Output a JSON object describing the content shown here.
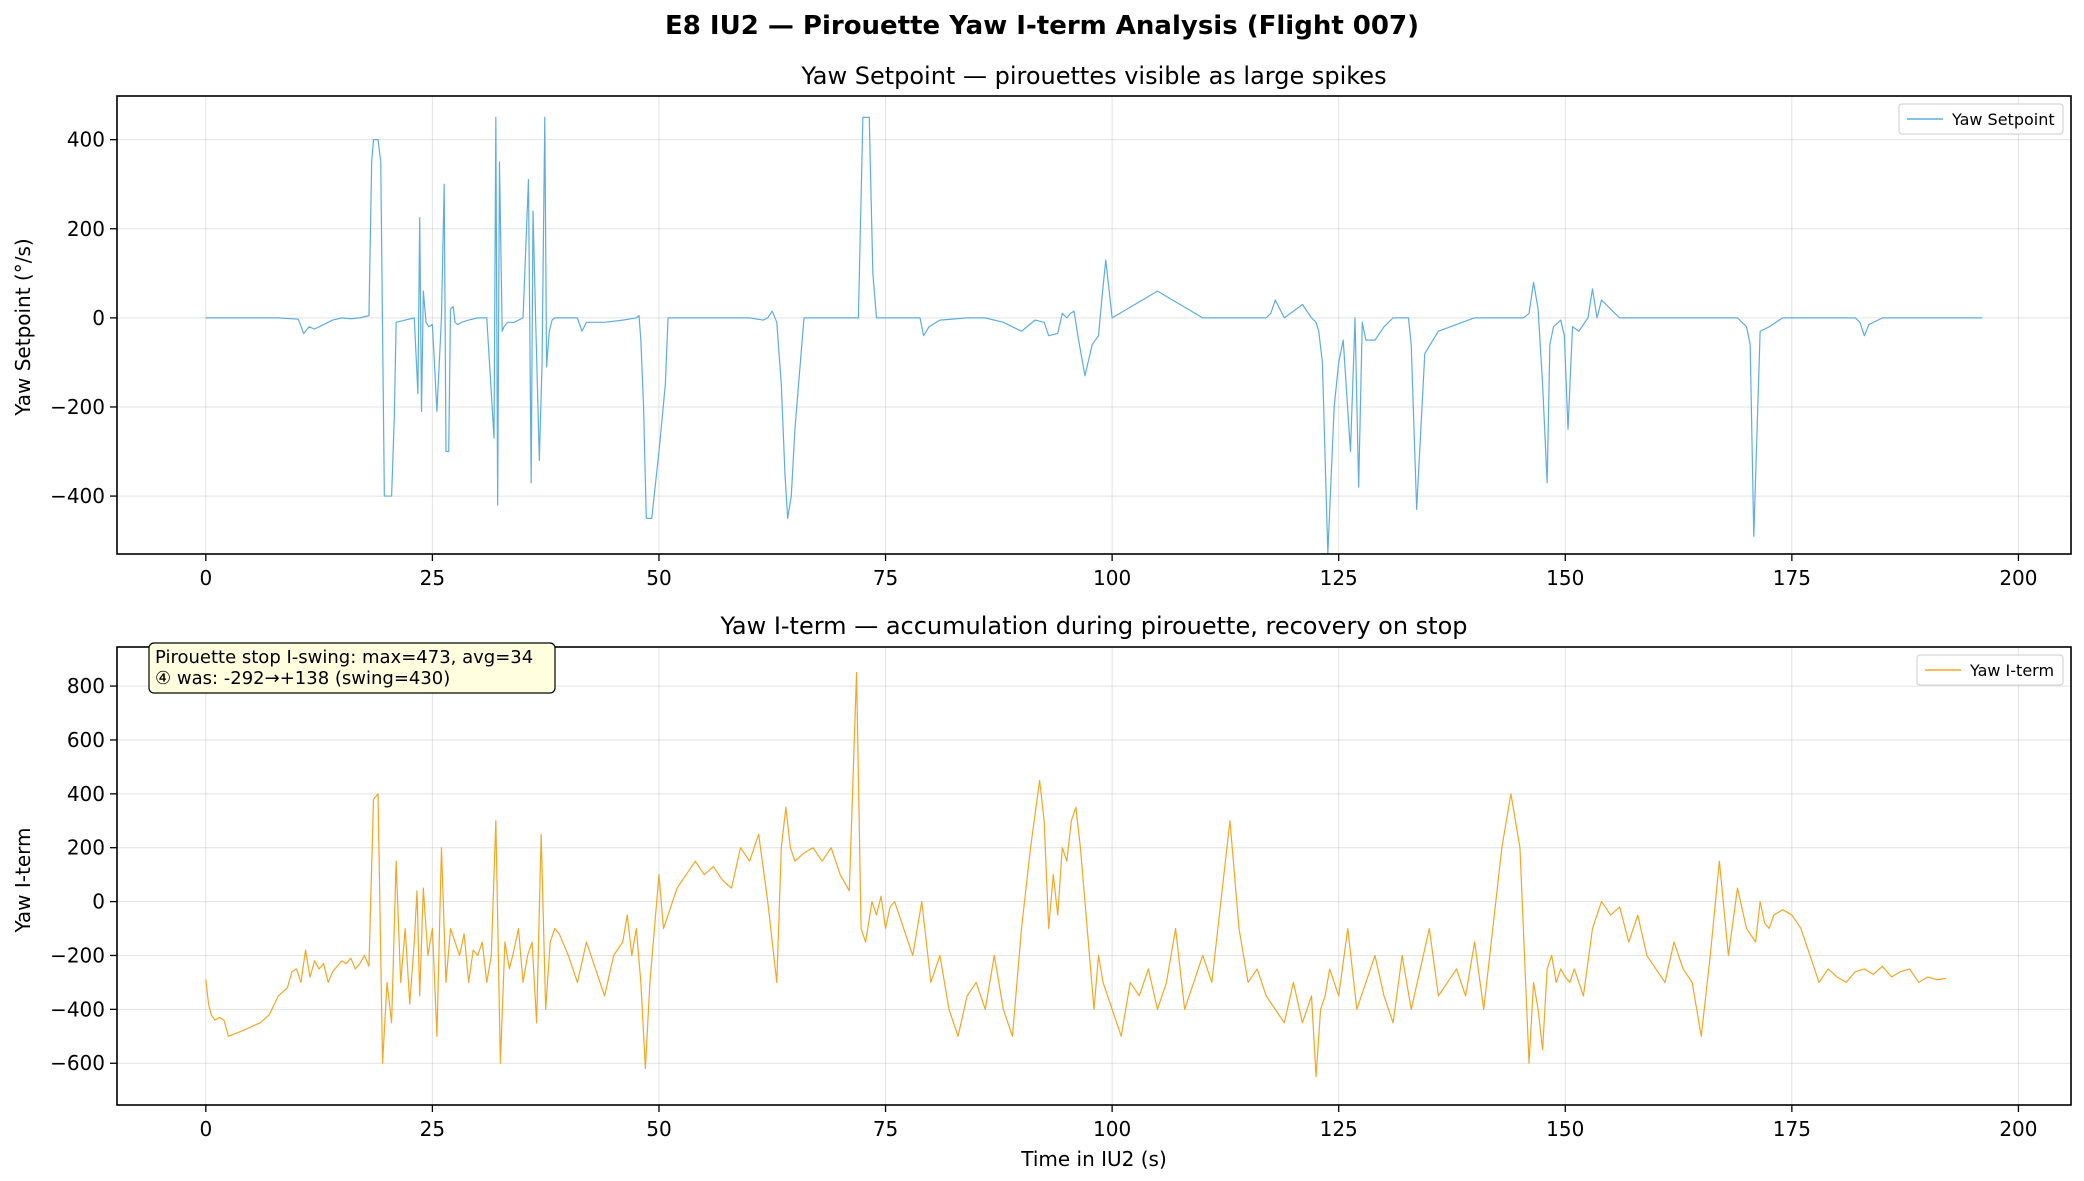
{
  "figure": {
    "suptitle": "E8 IU2 — Pirouette Yaw I-term Analysis (Flight 007)"
  },
  "chart_data": [
    {
      "type": "line",
      "title": "Yaw Setpoint — pirouettes visible as large spikes",
      "xlabel": "",
      "ylabel": "Yaw Setpoint (°/s)",
      "xlim": [
        -9.8,
        205.8
      ],
      "ylim": [
        -530,
        498
      ],
      "xticks": [
        0,
        25,
        50,
        75,
        100,
        125,
        150,
        175,
        200
      ],
      "yticks": [
        -400,
        -200,
        0,
        200,
        400
      ],
      "ytick_labels": [
        "−400",
        "−200",
        "0",
        "200",
        "400"
      ],
      "grid": true,
      "legend_position": "upper right",
      "series": [
        {
          "name": "Yaw Setpoint",
          "color": "#5DADE2",
          "x": [
            0,
            8,
            10.2,
            10.8,
            11.4,
            12,
            13,
            14,
            15,
            16,
            17,
            18.0,
            18.3,
            18.5,
            19.0,
            19.3,
            19.7,
            20.0,
            20.5,
            20.8,
            21.0,
            22,
            23,
            23.4,
            23.6,
            23.8,
            24.0,
            24.3,
            24.6,
            25,
            25.5,
            26,
            26.3,
            26.5,
            26.8,
            27.0,
            27.3,
            27.5,
            27.8,
            28.2,
            29,
            30,
            31,
            31.8,
            32.0,
            32.2,
            32.4,
            32.7,
            32.9,
            33.1,
            33.3,
            34,
            35,
            35.6,
            35.9,
            36.1,
            36.4,
            36.8,
            37.1,
            37.4,
            37.6,
            37.9,
            38.2,
            38.5,
            39,
            41,
            41.5,
            42,
            44,
            46,
            47.5,
            47.8,
            48.0,
            48.3,
            48.6,
            49.2,
            50.0,
            50.7,
            51,
            55,
            60,
            61.5,
            62,
            62.5,
            63,
            63.5,
            63.9,
            64.2,
            64.6,
            65,
            66,
            70,
            71.5,
            72.0,
            72.5,
            73.2,
            73.6,
            74,
            75,
            78,
            78.8,
            79.2,
            79.8,
            81,
            84,
            86,
            88,
            90,
            91.5,
            92.5,
            93,
            94,
            94.5,
            95,
            95.4,
            95.8,
            96.3,
            97,
            97.8,
            98.5,
            98.9,
            99.3,
            100,
            105,
            110,
            114,
            116.5,
            117,
            117.5,
            118,
            119,
            121,
            122,
            122.5,
            122.8,
            123.2,
            123.8,
            124.5,
            125.0,
            125.5,
            126.3,
            126.8,
            127.2,
            127.6,
            128,
            129,
            130,
            131,
            132.3,
            132.7,
            133.0,
            133.6,
            134.5,
            136,
            140,
            143,
            145,
            145.4,
            146,
            146.5,
            147.0,
            147.5,
            148.0,
            148.3,
            148.7,
            149.5,
            149.9,
            150.3,
            150.8,
            151.5,
            152.5,
            153,
            153.5,
            154,
            156,
            160,
            165,
            168,
            169,
            169.5,
            170.0,
            170.4,
            170.8,
            171.5,
            172.5,
            174,
            176,
            180,
            182,
            182.5,
            183,
            183.5,
            185,
            190,
            196
          ]
        },
        {
          "y": [
            0,
            0,
            -3,
            -35,
            -20,
            -25,
            -15,
            -5,
            0,
            -2,
            0,
            5,
            350,
            400,
            400,
            350,
            -400,
            -400,
            -400,
            -220,
            -10,
            -5,
            0,
            -170,
            225,
            -210,
            60,
            -10,
            -20,
            -15,
            -210,
            0,
            300,
            -300,
            -300,
            20,
            25,
            -10,
            -15,
            -10,
            -5,
            0,
            0,
            -270,
            450,
            -420,
            350,
            -30,
            -20,
            -15,
            -10,
            -10,
            0,
            310,
            -370,
            240,
            -10,
            -320,
            -100,
            450,
            -110,
            -30,
            -5,
            0,
            0,
            0,
            -30,
            -10,
            -10,
            -5,
            0,
            5,
            -50,
            -200,
            -450,
            -450,
            -300,
            -150,
            0,
            0,
            0,
            -5,
            0,
            15,
            -10,
            -150,
            -350,
            -450,
            -400,
            -250,
            0,
            0,
            0,
            0,
            450,
            450,
            100,
            0,
            0,
            0,
            0,
            -40,
            -20,
            -5,
            0,
            0,
            -10,
            -30,
            -5,
            -10,
            -40,
            -35,
            10,
            0,
            10,
            15,
            -50,
            -130,
            -60,
            -40,
            50,
            130,
            0,
            60,
            0,
            0,
            0,
            0,
            10,
            40,
            0,
            30,
            0,
            -10,
            -30,
            -100,
            -530,
            -200,
            -100,
            -50,
            -300,
            0,
            -380,
            -10,
            -50,
            -50,
            -20,
            0,
            0,
            0,
            -60,
            -430,
            -80,
            -30,
            0,
            0,
            0,
            0,
            10,
            80,
            20,
            -150,
            -370,
            -60,
            -20,
            -5,
            -40,
            -250,
            -20,
            -30,
            0,
            65,
            0,
            40,
            0,
            0,
            0,
            0,
            0,
            -10,
            -20,
            -60,
            -490,
            -30,
            -20,
            0,
            0,
            0,
            0,
            -10,
            -40,
            -15,
            0,
            0,
            0
          ]
        }
      ]
    },
    {
      "type": "line",
      "title": "Yaw I-term — accumulation during pirouette, recovery on stop",
      "xlabel": "Time in IU2 (s)",
      "ylabel": "Yaw I-term",
      "xlim": [
        -9.8,
        205.8
      ],
      "ylim": [
        -755,
        945
      ],
      "xticks": [
        0,
        25,
        50,
        75,
        100,
        125,
        150,
        175,
        200
      ],
      "yticks": [
        -600,
        -400,
        -200,
        0,
        200,
        400,
        600,
        800
      ],
      "ytick_labels": [
        "−600",
        "−400",
        "−200",
        "0",
        "200",
        "400",
        "600",
        "800"
      ],
      "grid": true,
      "legend_position": "upper right",
      "annotation": {
        "line1": "Pirouette stop I-swing: max=473, avg=34",
        "line2": "④ was: -292→+138 (swing=430)",
        "position": "upper left"
      },
      "series": [
        {
          "name": "Yaw I-term",
          "color": "#F5A623",
          "x": [
            0,
            0.3,
            0.6,
            1.0,
            1.5,
            2.0,
            2.5,
            4,
            6,
            7,
            8,
            9,
            9.5,
            10,
            10.5,
            11,
            11.5,
            12,
            12.5,
            13,
            13.5,
            14,
            14.5,
            15,
            15.5,
            16,
            16.5,
            17,
            17.5,
            18.0,
            18.5,
            19.0,
            19.5,
            20.0,
            20.5,
            21.0,
            21.5,
            22.0,
            22.5,
            23.0,
            23.3,
            23.6,
            24.0,
            24.5,
            25.0,
            25.5,
            26.0,
            26.5,
            27.0,
            27.5,
            28.0,
            28.5,
            29.0,
            29.5,
            30.0,
            30.5,
            31.0,
            31.5,
            32.0,
            32.5,
            33.0,
            33.5,
            34.0,
            34.5,
            35.0,
            35.5,
            36.0,
            36.5,
            37.0,
            37.5,
            38.0,
            38.5,
            39.0,
            40.0,
            41.0,
            42.0,
            43.0,
            44.0,
            45.0,
            46.0,
            46.5,
            47.0,
            47.5,
            48.0,
            48.5,
            49.0,
            49.5,
            50.0,
            50.5,
            51.0,
            51.5,
            52.0,
            53.0,
            54.0,
            55.0,
            56.0,
            57.0,
            58.0,
            59.0,
            60.0,
            61.0,
            62.0,
            63.0,
            63.5,
            64.0,
            64.5,
            65.0,
            66.0,
            67.0,
            68.0,
            69.0,
            70.0,
            71.0,
            71.8,
            72.3,
            72.8,
            73.5,
            74.0,
            74.5,
            75.0,
            75.5,
            76.0,
            77.0,
            78.0,
            79.0,
            80.0,
            81.0,
            82.0,
            83.0,
            84.0,
            85.0,
            86.0,
            87.0,
            88.0,
            89.0,
            90.0,
            91.0,
            92.0,
            92.5,
            93.0,
            93.5,
            94.0,
            94.5,
            95.0,
            95.5,
            96.0,
            96.5,
            97.0,
            97.5,
            98.0,
            98.5,
            99.0,
            100.0,
            101.0,
            102.0,
            103.0,
            104.0,
            105.0,
            106.0,
            107.0,
            108.0,
            109.0,
            110.0,
            111.0,
            112.0,
            113.0,
            114.0,
            114.5,
            115.0,
            116.0,
            117.0,
            118.0,
            119.0,
            120.0,
            121.0,
            122.0,
            122.5,
            123.0,
            123.5,
            124.0,
            125.0,
            126.0,
            127.0,
            128.0,
            129.0,
            130.0,
            131.0,
            132.0,
            133.0,
            134.0,
            135.0,
            136.0,
            137.0,
            138.0,
            139.0,
            140.0,
            141.0,
            142.0,
            143.0,
            144.0,
            145.0,
            145.5,
            146.0,
            146.5,
            147.0,
            147.5,
            148.0,
            148.5,
            149.0,
            149.5,
            150.0,
            150.5,
            151.0,
            152.0,
            153.0,
            154.0,
            155.0,
            156.0,
            157.0,
            158.0,
            159.0,
            160.0,
            161.0,
            162.0,
            163.0,
            164.0,
            165.0,
            166.0,
            167.0,
            168.0,
            169.0,
            170.0,
            171.0,
            171.5,
            172.0,
            172.5,
            173.0,
            174.0,
            175.0,
            176.0,
            177.0,
            178.0,
            179.0,
            180.0,
            181.0,
            182.0,
            183.0,
            184.0,
            185.0,
            186.0,
            187.0,
            188.0,
            189.0,
            190.0,
            191.0,
            192.0,
            193.0,
            194.0,
            195.0,
            196.0
          ]
        },
        {
          "y": [
            -290,
            -380,
            -420,
            -440,
            -430,
            -440,
            -500,
            -480,
            -450,
            -420,
            -350,
            -320,
            -260,
            -250,
            -300,
            -180,
            -280,
            -220,
            -250,
            -230,
            -300,
            -260,
            -240,
            -220,
            -230,
            -210,
            -250,
            -230,
            -200,
            -240,
            380,
            400,
            -600,
            -300,
            -450,
            150,
            -300,
            -100,
            -380,
            -150,
            40,
            -350,
            50,
            -200,
            -100,
            -500,
            200,
            -300,
            -100,
            -150,
            -200,
            -120,
            -300,
            -180,
            -200,
            -150,
            -300,
            -200,
            300,
            -600,
            -150,
            -250,
            -180,
            -100,
            -300,
            -200,
            -150,
            -450,
            250,
            -400,
            -150,
            -100,
            -120,
            -200,
            -300,
            -150,
            -250,
            -350,
            -200,
            -150,
            -50,
            -200,
            -100,
            -300,
            -620,
            -300,
            -100,
            100,
            -100,
            -50,
            0,
            50,
            100,
            150,
            100,
            130,
            80,
            50,
            200,
            150,
            250,
            0,
            -300,
            200,
            350,
            200,
            150,
            180,
            200,
            150,
            200,
            100,
            40,
            850,
            -100,
            -150,
            0,
            -50,
            20,
            -100,
            -20,
            0,
            -100,
            -200,
            0,
            -300,
            -200,
            -400,
            -500,
            -350,
            -300,
            -400,
            -200,
            -400,
            -500,
            -100,
            200,
            450,
            300,
            -100,
            100,
            -50,
            200,
            150,
            300,
            350,
            200,
            0,
            -200,
            -400,
            -200,
            -300,
            -400,
            -500,
            -300,
            -350,
            -250,
            -400,
            -300,
            -100,
            -400,
            -300,
            -200,
            -300,
            0,
            300,
            -100,
            -200,
            -300,
            -250,
            -350,
            -400,
            -450,
            -300,
            -450,
            -350,
            -650,
            -400,
            -350,
            -250,
            -350,
            -100,
            -400,
            -300,
            -200,
            -350,
            -450,
            -200,
            -400,
            -250,
            -100,
            -350,
            -300,
            -250,
            -350,
            -150,
            -400,
            -100,
            200,
            400,
            200,
            -200,
            -600,
            -300,
            -400,
            -550,
            -250,
            -200,
            -300,
            -250,
            -280,
            -300,
            -250,
            -350,
            -100,
            0,
            -50,
            -20,
            -150,
            -50,
            -200,
            -250,
            -300,
            -150,
            -250,
            -300,
            -500,
            -200,
            150,
            -200,
            50,
            -100,
            -150,
            0,
            -80,
            -100,
            -50,
            -30,
            -50,
            -100,
            -200,
            -300,
            -250,
            -280,
            -300,
            -260,
            -250,
            -270,
            -240,
            -280,
            -260,
            -250,
            -300,
            -280,
            -290,
            -285
          ]
        }
      ]
    }
  ]
}
